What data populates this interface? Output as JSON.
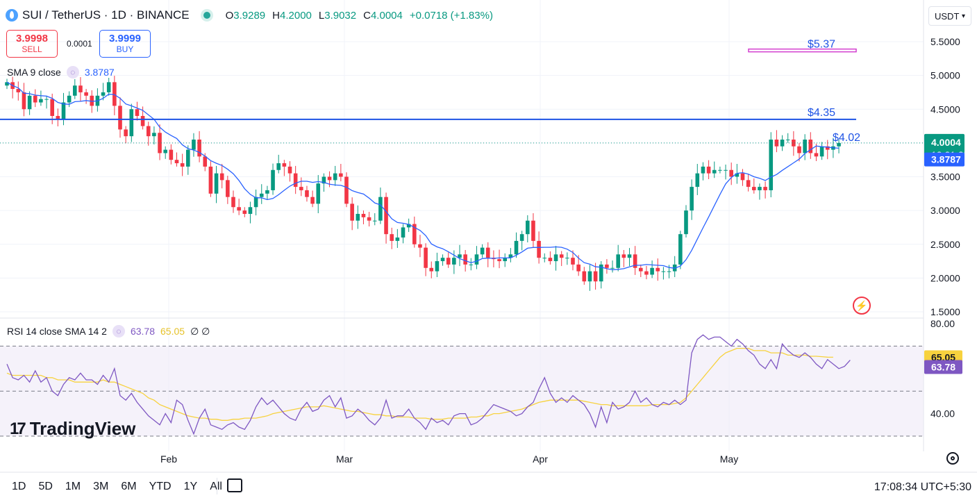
{
  "header": {
    "title": "SUI / TetherUS · 1D · BINANCE",
    "ohlc": [
      {
        "k": "O",
        "v": "3.9289"
      },
      {
        "k": "H",
        "v": "4.2000"
      },
      {
        "k": "L",
        "v": "3.9032"
      },
      {
        "k": "C",
        "v": "4.0004"
      },
      {
        "k": "",
        "v": "+0.0718 (+1.83%)"
      }
    ]
  },
  "trade": {
    "sell_price": "3.9998",
    "sell_label": "SELL",
    "spread": "0.0001",
    "buy_price": "3.9999",
    "buy_label": "BUY"
  },
  "sma_indicator": {
    "label": "SMA 9 close",
    "value": "3.8787"
  },
  "rsi_indicator": {
    "label": "RSI 14 close SMA 14 2",
    "value1": "63.78",
    "value2": "65.05",
    "extra": "∅ ∅"
  },
  "currency": "USDT",
  "price_labels": {
    "last": "4.0004",
    "countdown": "12:21:25",
    "sma": "3.8787"
  },
  "rsi_labels": {
    "sma": "65.05",
    "rsi": "63.78"
  },
  "annotations": [
    {
      "text": "$5.37"
    },
    {
      "text": "$4.35"
    },
    {
      "text": "$4.02"
    }
  ],
  "timeframes": [
    "1D",
    "5D",
    "1M",
    "3M",
    "6M",
    "YTD",
    "1Y",
    "All"
  ],
  "logo": "TradingView",
  "time_readout": "17:08:34 UTC+5:30",
  "colors": {
    "up": "#089981",
    "down": "#f23645",
    "sma": "#2962ff",
    "rsi": "#7e57c2",
    "rsi_sma": "#f7d23e",
    "line_hl": "#1e53e5"
  },
  "chart_data": [
    {
      "type": "candlestick",
      "title": "SUI / TetherUS · 1D · BINANCE",
      "ylim": [
        1.5,
        5.6
      ],
      "y_ticks": [
        "1.5000",
        "2.0000",
        "2.5000",
        "3.0000",
        "3.5000",
        "4.0000",
        "4.5000",
        "5.0000",
        "5.5000"
      ],
      "x_tick_labels": [
        "Feb",
        "Mar",
        "Apr",
        "May"
      ],
      "hlines": [
        4.35
      ],
      "overlay_sma9_last": 3.8787,
      "close_series": [
        4.9,
        4.8,
        4.75,
        4.5,
        4.7,
        4.6,
        4.65,
        4.65,
        4.4,
        4.35,
        4.6,
        4.7,
        4.85,
        4.75,
        4.7,
        4.55,
        4.7,
        4.75,
        4.9,
        4.55,
        4.2,
        4.1,
        4.5,
        4.4,
        4.25,
        4.1,
        4.15,
        3.85,
        3.9,
        3.75,
        3.7,
        3.65,
        3.9,
        4.05,
        3.8,
        3.65,
        3.25,
        3.55,
        3.45,
        3.2,
        3.05,
        3.0,
        2.95,
        3.05,
        3.2,
        3.25,
        3.3,
        3.6,
        3.7,
        3.65,
        3.55,
        3.35,
        3.3,
        3.2,
        3.1,
        3.4,
        3.5,
        3.45,
        3.55,
        3.5,
        3.1,
        2.85,
        2.95,
        2.9,
        2.85,
        2.85,
        3.2,
        2.65,
        2.55,
        2.6,
        2.75,
        2.8,
        2.5,
        2.45,
        2.15,
        2.1,
        2.25,
        2.3,
        2.2,
        2.3,
        2.35,
        2.2,
        2.2,
        2.35,
        2.45,
        2.3,
        2.28,
        2.25,
        2.3,
        2.35,
        2.55,
        2.65,
        2.85,
        2.55,
        2.3,
        2.3,
        2.25,
        2.35,
        2.3,
        2.3,
        2.2,
        2.1,
        1.95,
        2.1,
        1.95,
        2.2,
        2.15,
        2.15,
        2.35,
        2.3,
        2.35,
        2.15,
        2.1,
        2.05,
        2.15,
        2.1,
        2.1,
        2.1,
        2.2,
        2.65,
        3.0,
        3.35,
        3.55,
        3.65,
        3.55,
        3.6,
        3.6,
        3.6,
        3.5,
        3.55,
        3.45,
        3.35,
        3.3,
        3.35,
        3.3,
        4.05,
        3.95,
        4.05,
        4.05,
        3.95,
        3.85,
        4.05,
        3.85,
        3.8,
        3.95,
        3.9,
        3.95,
        4.0004
      ]
    },
    {
      "type": "line",
      "title": "RSI 14 close SMA 14 2",
      "ylim": [
        30,
        80
      ],
      "y_ticks": [
        "40.00",
        "60.00",
        "80.00"
      ],
      "bands": [
        70,
        50,
        30
      ],
      "series": [
        {
          "name": "RSI",
          "values": [
            62,
            56,
            55,
            57,
            54,
            59,
            54,
            56,
            50,
            48,
            53,
            56,
            55,
            58,
            55,
            55,
            53,
            57,
            54,
            60,
            48,
            46,
            49,
            45,
            42,
            39,
            37,
            35,
            40,
            36,
            46,
            44,
            37,
            31,
            38,
            42,
            35,
            34,
            33,
            35,
            36,
            34,
            33,
            37,
            43,
            47,
            44,
            46,
            43,
            40,
            38,
            37,
            42,
            45,
            41,
            42,
            46,
            48,
            43,
            47,
            38,
            39,
            42,
            40,
            37,
            35,
            38,
            46,
            38,
            39,
            39,
            42,
            38,
            36,
            33,
            38,
            36,
            37,
            35,
            39,
            40,
            40,
            35,
            36,
            38,
            41,
            44,
            43,
            42,
            41,
            39,
            40,
            43,
            45,
            51,
            56,
            49,
            45,
            47,
            45,
            48,
            46,
            44,
            40,
            34,
            43,
            36,
            45,
            42,
            43,
            45,
            50,
            45,
            47,
            44,
            43,
            45,
            44,
            46,
            44,
            46,
            67,
            73,
            75,
            73,
            74,
            74,
            72,
            70,
            73,
            71,
            68,
            66,
            62,
            60,
            64,
            60,
            71,
            68,
            66,
            65,
            67,
            65,
            62,
            60,
            64,
            62,
            60,
            61,
            63.78
          ]
        },
        {
          "name": "SMA",
          "values": [
            58,
            57,
            57,
            57,
            57,
            57,
            57,
            56,
            56,
            55,
            55,
            55,
            54,
            54,
            54,
            54,
            54,
            55,
            54,
            54,
            53,
            52,
            51,
            50,
            49,
            47,
            46,
            44,
            43,
            42,
            41,
            40,
            39,
            38.5,
            38,
            38,
            37.5,
            37.5,
            37,
            37,
            37.5,
            37.5,
            38,
            38,
            38,
            38.5,
            39,
            40,
            40.5,
            41,
            41.5,
            42,
            42.5,
            43,
            43,
            43,
            43.5,
            43,
            42.5,
            42,
            41.5,
            41,
            41,
            40.5,
            40,
            39.5,
            39.5,
            39,
            39,
            38.5,
            38.5,
            38.5,
            38,
            38,
            38,
            37.5,
            37.5,
            37.5,
            38,
            38,
            38,
            38,
            38.5,
            38.5,
            39,
            39,
            40,
            40,
            40.5,
            41,
            41.5,
            42,
            43,
            44,
            45,
            45.5,
            46,
            46,
            46,
            46,
            46,
            46,
            45.5,
            45,
            44.5,
            44,
            44,
            43.5,
            43.5,
            43.5,
            43.5,
            43.5,
            43.5,
            43.5,
            44,
            44,
            44,
            44,
            44.5,
            45,
            47,
            50,
            53,
            56,
            59,
            62,
            65,
            67,
            68,
            69,
            69,
            69,
            68,
            68,
            68,
            67,
            67,
            67,
            66,
            66,
            66,
            66,
            65.5,
            65.5,
            65.3,
            65.1,
            65.05
          ]
        }
      ]
    }
  ]
}
